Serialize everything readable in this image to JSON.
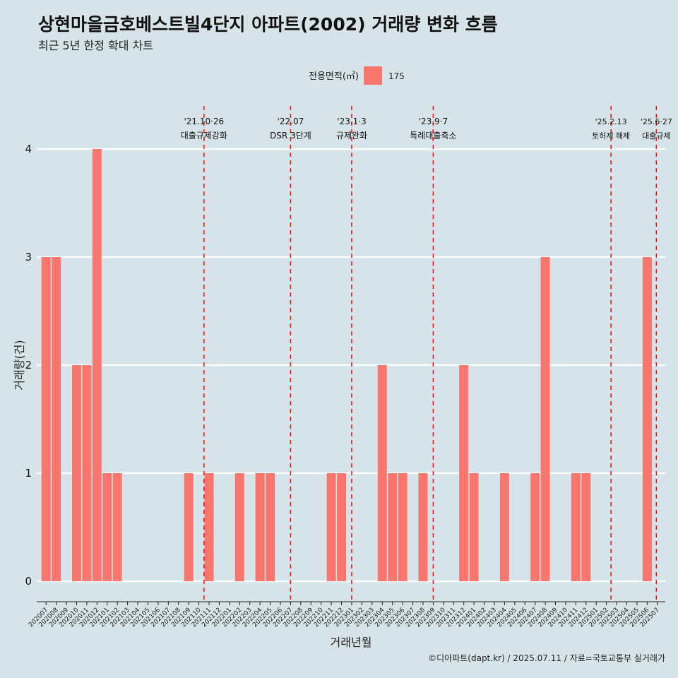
{
  "chart_data": {
    "type": "bar",
    "title": "상현마을금호베스트빌4단지 아파트(2002) 거래량 변화 흐름",
    "subtitle": "최근 5년 한정 확대 차트",
    "xlabel": "거래년월",
    "ylabel": "거래량(건)",
    "ylim": [
      0,
      4
    ],
    "y_ticks": [
      0,
      1,
      2,
      3,
      4
    ],
    "grid": true,
    "legend": {
      "title": "전용면적(㎡)",
      "position": "top",
      "items": [
        {
          "label": "175",
          "color": "#f8766d"
        }
      ]
    },
    "categories": [
      "202007",
      "202008",
      "202009",
      "202010",
      "202011",
      "202012",
      "202101",
      "202102",
      "202103",
      "202104",
      "202105",
      "202106",
      "202107",
      "202108",
      "202109",
      "202110",
      "202111",
      "202112",
      "202201",
      "202202",
      "202203",
      "202204",
      "202205",
      "202206",
      "202207",
      "202208",
      "202209",
      "202210",
      "202211",
      "202212",
      "202301",
      "202302",
      "202303",
      "202304",
      "202305",
      "202306",
      "202307",
      "202308",
      "202309",
      "202310",
      "202311",
      "202312",
      "202401",
      "202402",
      "202403",
      "202404",
      "202405",
      "202406",
      "202407",
      "202408",
      "202409",
      "202410",
      "202411",
      "202412",
      "202501",
      "202502",
      "202503",
      "202504",
      "202505",
      "202506",
      "202507"
    ],
    "series": [
      {
        "name": "175",
        "color": "#f8766d",
        "values": [
          3,
          3,
          0,
          2,
          2,
          4,
          1,
          1,
          0,
          0,
          0,
          0,
          0,
          0,
          1,
          0,
          1,
          0,
          0,
          1,
          0,
          1,
          1,
          0,
          0,
          0,
          0,
          0,
          1,
          1,
          0,
          0,
          0,
          2,
          1,
          1,
          0,
          1,
          0,
          0,
          0,
          2,
          1,
          0,
          0,
          1,
          0,
          0,
          1,
          3,
          0,
          0,
          1,
          1,
          0,
          0,
          0,
          0,
          0,
          3,
          0
        ]
      }
    ],
    "annotations": [
      {
        "date": "'21.10·26",
        "label": "대출규제강화",
        "category": "202110",
        "offset": 0.5
      },
      {
        "date": "'22.07",
        "label": "DSR 3단계",
        "category": "202207",
        "offset": 0.0
      },
      {
        "date": "'23.1·3",
        "label": "규제완화",
        "category": "202301",
        "offset": 0.0
      },
      {
        "date": "'23.9·7",
        "label": "특례대출축소",
        "category": "202309",
        "offset": 0.0
      },
      {
        "date": "'25.2.13",
        "label": "토허제 해제",
        "category": "202502",
        "offset": 0.45
      },
      {
        "date": "'25.6·27",
        "label": "대출규제",
        "category": "202506",
        "offset": 0.9
      }
    ],
    "annotation_color": "#e41a1c"
  },
  "caption": "©디아파트(dapt.kr) / 2025.07.11 / 자료=국토교통부 실거래가"
}
